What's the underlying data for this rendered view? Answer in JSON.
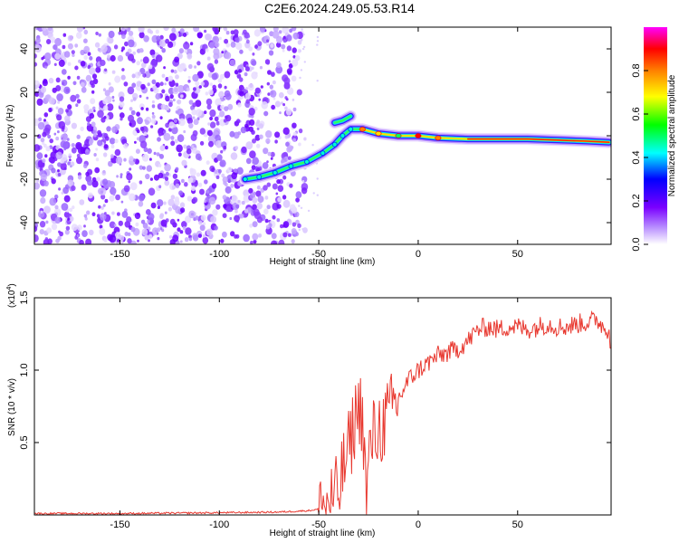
{
  "title": "C2E6.2024.249.05.53.R14",
  "chart_data": [
    {
      "type": "heatmap",
      "xlabel": "Height of straight line (km)",
      "ylabel": "Frequency (Hz)",
      "xlim": [
        -193,
        97
      ],
      "ylim": [
        -50,
        50
      ],
      "xticks": [
        -150,
        -100,
        -50,
        0,
        50
      ],
      "yticks": [
        -40,
        -20,
        0,
        20,
        40
      ],
      "colorbar": {
        "label": "Normalized spectral amplitude",
        "range": [
          0.0,
          1.0
        ],
        "ticks": [
          0.0,
          0.2,
          0.4,
          0.6,
          0.8
        ],
        "colormap": [
          "#ffffff",
          "#7a00ff",
          "#0000ff",
          "#00ffff",
          "#00ff00",
          "#ffff00",
          "#ff8000",
          "#ff0000",
          "#ff00ff"
        ]
      },
      "noise_region_x": [
        -193,
        -62
      ],
      "ridge": [
        {
          "x": -87,
          "y": -20
        },
        {
          "x": -80,
          "y": -19
        },
        {
          "x": -72,
          "y": -17
        },
        {
          "x": -64,
          "y": -14
        },
        {
          "x": -56,
          "y": -12
        },
        {
          "x": -48,
          "y": -8
        },
        {
          "x": -42,
          "y": -4
        },
        {
          "x": -38,
          "y": 0
        },
        {
          "x": -34,
          "y": 3
        },
        {
          "x": -28,
          "y": 3
        },
        {
          "x": -20,
          "y": 1
        },
        {
          "x": -10,
          "y": 0
        },
        {
          "x": 0,
          "y": 0
        },
        {
          "x": 10,
          "y": -1
        },
        {
          "x": 25,
          "y": -1.5
        },
        {
          "x": 40,
          "y": -1.5
        },
        {
          "x": 55,
          "y": -1.5
        },
        {
          "x": 70,
          "y": -2
        },
        {
          "x": 85,
          "y": -2.5
        },
        {
          "x": 96,
          "y": -3
        }
      ],
      "secondary_branch": [
        {
          "x": -42,
          "y": 6
        },
        {
          "x": -38,
          "y": 7
        },
        {
          "x": -34,
          "y": 9
        }
      ]
    },
    {
      "type": "line",
      "xlabel": "Height of straight line (km)",
      "ylabel": "SNR (10 * v/v)",
      "y_multiplier": "(x10",
      "y_multiplier_exp": "4",
      "xlim": [
        -193,
        97
      ],
      "ylim": [
        0,
        1.5
      ],
      "xticks": [
        -150,
        -100,
        -50,
        0,
        50
      ],
      "yticks": [
        0.5,
        1.0,
        1.5
      ],
      "color": "#e8382f",
      "series": [
        {
          "x": [
            -193,
            -150,
            -100,
            -70,
            -55,
            -50,
            -45,
            -40,
            -38,
            -36,
            -34,
            -32,
            -30,
            -28,
            -26,
            -24,
            -22,
            -20,
            -18,
            -16,
            -14,
            -12,
            -10,
            -8,
            -5,
            0,
            5,
            10,
            15,
            20,
            25,
            30,
            35,
            40,
            45,
            50,
            55,
            60,
            65,
            70,
            75,
            80,
            85,
            90,
            93,
            96,
            97
          ],
          "y": [
            0.01,
            0.01,
            0.015,
            0.02,
            0.03,
            0.04,
            0.08,
            0.15,
            0.3,
            0.4,
            0.5,
            0.65,
            0.75,
            0.7,
            0.1,
            0.5,
            0.55,
            0.6,
            0.62,
            0.65,
            0.7,
            0.75,
            0.8,
            0.85,
            0.93,
            1.0,
            1.05,
            1.1,
            1.12,
            1.15,
            1.2,
            1.28,
            1.3,
            1.28,
            1.3,
            1.3,
            1.28,
            1.3,
            1.32,
            1.3,
            1.3,
            1.32,
            1.33,
            1.35,
            1.3,
            1.28,
            1.15
          ]
        }
      ]
    }
  ]
}
